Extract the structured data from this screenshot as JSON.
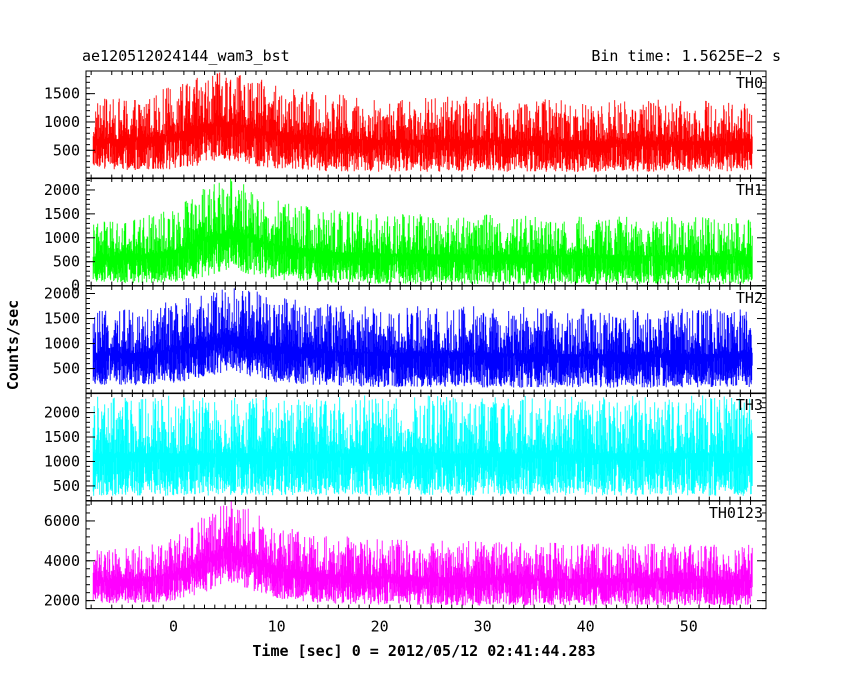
{
  "header": {
    "title": "ae120512024144_wam3_bst",
    "bin_time": "Bin time: 1.5625E−2 s"
  },
  "chart_data": {
    "type": "line",
    "xlabel": "Time [sec] 0 = 2012/05/12 02:41:44.283",
    "ylabel": "Counts/sec",
    "xlim": [
      -8.5,
      57.5
    ],
    "x_ticks": [
      0,
      10,
      20,
      30,
      40,
      50
    ],
    "x_data_range": [
      -7.8,
      56.2
    ],
    "series_style": "dense light curve (min-max envelope per time bin)",
    "panels": [
      {
        "name": "TH0",
        "color": "#ff0000",
        "ylim": [
          0,
          1900
        ],
        "yticks": [
          500,
          1000,
          1500
        ],
        "envelope": {
          "x": [
            -7.8,
            -4,
            0,
            3,
            5,
            6,
            7,
            10,
            15,
            20,
            30,
            40,
            50,
            56.2
          ],
          "min": [
            180,
            150,
            160,
            250,
            330,
            300,
            240,
            180,
            130,
            120,
            120,
            110,
            120,
            130
          ],
          "max": [
            1400,
            1450,
            1650,
            1820,
            1900,
            1900,
            1850,
            1650,
            1500,
            1450,
            1450,
            1400,
            1400,
            1380
          ]
        }
      },
      {
        "name": "TH1",
        "color": "#00ff00",
        "ylim": [
          0,
          2250
        ],
        "yticks": [
          0,
          500,
          1000,
          1500,
          2000
        ],
        "envelope": {
          "x": [
            -7.8,
            -4,
            0,
            3,
            5,
            6,
            7,
            10,
            15,
            20,
            30,
            40,
            50,
            56.2
          ],
          "min": [
            60,
            50,
            60,
            180,
            300,
            330,
            250,
            120,
            60,
            40,
            30,
            30,
            30,
            30
          ],
          "max": [
            1350,
            1400,
            1650,
            2050,
            2250,
            2250,
            2150,
            1800,
            1600,
            1500,
            1500,
            1450,
            1450,
            1400
          ]
        }
      },
      {
        "name": "TH2",
        "color": "#0000ff",
        "ylim": [
          0,
          2150
        ],
        "yticks": [
          500,
          1000,
          1500,
          2000
        ],
        "envelope": {
          "x": [
            -7.8,
            -4,
            0,
            3,
            5,
            6,
            7,
            10,
            15,
            20,
            30,
            40,
            50,
            56.2
          ],
          "min": [
            180,
            160,
            180,
            320,
            430,
            430,
            350,
            220,
            150,
            130,
            120,
            110,
            120,
            130
          ],
          "max": [
            1650,
            1700,
            1850,
            2000,
            2150,
            2150,
            2100,
            1950,
            1800,
            1750,
            1750,
            1700,
            1700,
            1700
          ]
        }
      },
      {
        "name": "TH3",
        "color": "#00ffff",
        "ylim": [
          200,
          2400
        ],
        "yticks": [
          500,
          1000,
          1500,
          2000
        ],
        "envelope": {
          "x": [
            -7.8,
            0,
            10,
            20,
            30,
            40,
            50,
            56.2
          ],
          "min": [
            300,
            300,
            300,
            300,
            300,
            300,
            300,
            300
          ],
          "max": [
            2350,
            2350,
            2350,
            2350,
            2350,
            2350,
            2350,
            2350
          ]
        }
      },
      {
        "name": "TH0123",
        "color": "#ff00ff",
        "ylim": [
          1600,
          7000
        ],
        "yticks": [
          2000,
          4000,
          6000
        ],
        "envelope": {
          "x": [
            -7.8,
            -4,
            0,
            3,
            5,
            6,
            7,
            10,
            15,
            20,
            30,
            40,
            50,
            56.2
          ],
          "min": [
            1900,
            1850,
            1950,
            2400,
            2900,
            2900,
            2600,
            2100,
            1850,
            1800,
            1750,
            1750,
            1750,
            1750
          ],
          "max": [
            4600,
            4700,
            5300,
            6300,
            7000,
            7000,
            6700,
            5800,
            5300,
            5100,
            5000,
            4900,
            4900,
            4800
          ]
        }
      }
    ]
  }
}
